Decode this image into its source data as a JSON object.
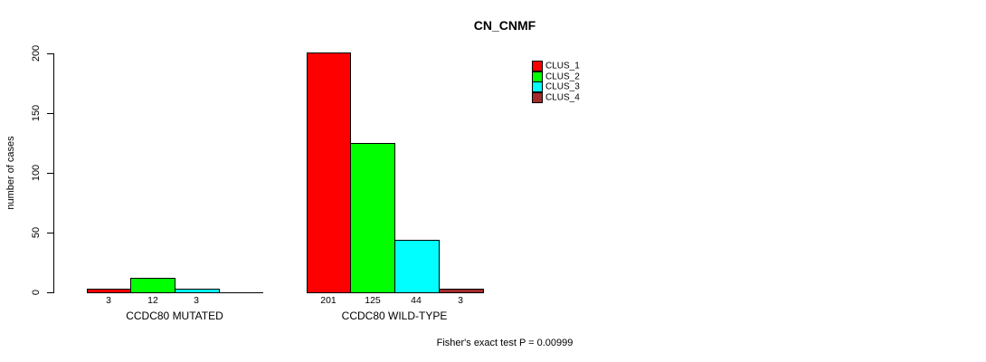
{
  "title": "CN_CNMF",
  "footer": "Fisher's exact test P = 0.00999",
  "chart_data": {
    "type": "bar",
    "title": "CN_CNMF",
    "xlabel": "",
    "ylabel": "number of cases",
    "ylim": [
      0,
      200
    ],
    "yticks": [
      0,
      50,
      100,
      150,
      200
    ],
    "grid": false,
    "legend_position": "top-right",
    "categories": [
      "CCDC80 MUTATED",
      "CCDC80 WILD-TYPE"
    ],
    "series": [
      {
        "name": "CLUS_1",
        "color": "#ff0000",
        "values": [
          3,
          201
        ]
      },
      {
        "name": "CLUS_2",
        "color": "#00ff00",
        "values": [
          12,
          125
        ]
      },
      {
        "name": "CLUS_3",
        "color": "#00ffff",
        "values": [
          3,
          44
        ]
      },
      {
        "name": "CLUS_4",
        "color": "#a52a2a",
        "values": [
          0,
          3
        ]
      }
    ],
    "bar_value_labels_shown": [
      [
        3,
        12,
        3
      ],
      [
        201,
        125,
        44,
        3
      ]
    ],
    "hide_zero_value_labels": true,
    "annotation": "Fisher's exact test P = 0.00999",
    "colors": {
      "axis": "#000000",
      "background": "#ffffff",
      "bar_border": "#000000"
    }
  }
}
